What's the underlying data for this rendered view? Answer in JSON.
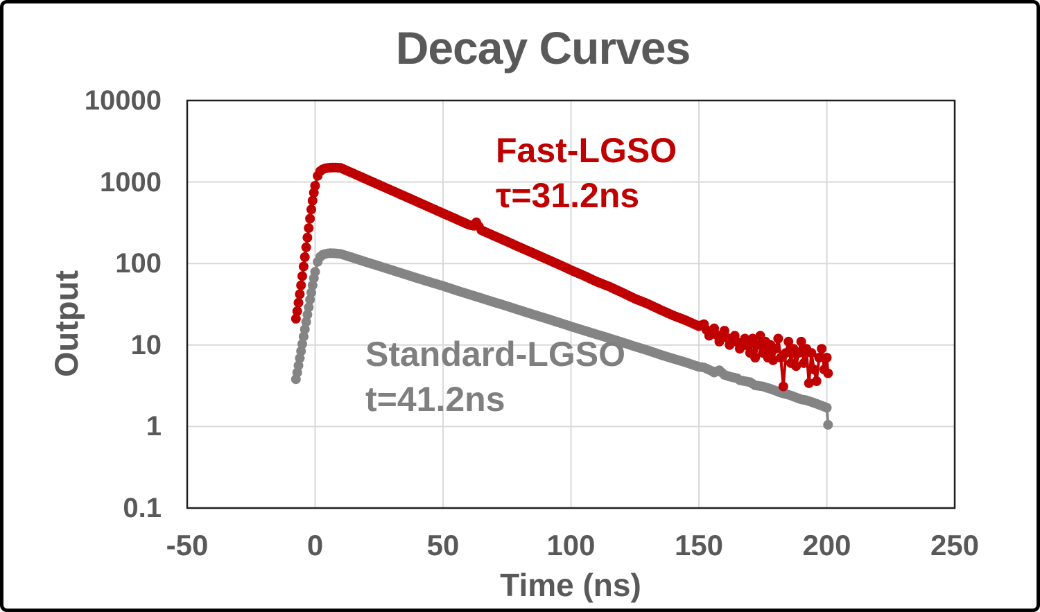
{
  "chart_data": {
    "type": "scatter",
    "title": "Decay Curves",
    "xlabel": "Time (ns)",
    "ylabel": "Output",
    "grid": true,
    "x_axis": {
      "min": -50,
      "max": 250,
      "ticks": [
        -50,
        0,
        50,
        100,
        150,
        200,
        250
      ]
    },
    "y_axis": {
      "scale": "log",
      "min": 0.1,
      "max": 10000,
      "ticks": [
        {
          "label": "10000",
          "value": 10000
        },
        {
          "label": "1000",
          "value": 1000
        },
        {
          "label": "100",
          "value": 100
        },
        {
          "label": "10",
          "value": 10
        },
        {
          "label": "1",
          "value": 1
        },
        {
          "label": "0.1",
          "value": 0.1
        }
      ]
    },
    "colors": {
      "fast": "#C00000",
      "standard": "#848484",
      "text": "#595959",
      "grid": "#D9D9D9",
      "plot_border": "#1F1F1F"
    },
    "annotations": [
      {
        "id": "fast",
        "lines": [
          "Fast-LGSO",
          "τ=31.2ns"
        ],
        "color": "#C00000"
      },
      {
        "id": "standard",
        "lines": [
          "Standard-LGSO",
          "t=41.2ns"
        ],
        "color": "#7F7F7F"
      }
    ],
    "series": [
      {
        "name": "Fast-LGSO",
        "tau_ns": 31.2,
        "color": "#C00000",
        "points": [
          [
            -7.5,
            21
          ],
          [
            -7,
            26
          ],
          [
            -6.5,
            33
          ],
          [
            -6,
            42
          ],
          [
            -5.5,
            54
          ],
          [
            -5,
            70
          ],
          [
            -4.5,
            92
          ],
          [
            -4,
            120
          ],
          [
            -3.5,
            158
          ],
          [
            -3,
            208
          ],
          [
            -2.5,
            272
          ],
          [
            -2,
            355
          ],
          [
            -1.5,
            460
          ],
          [
            -1,
            590
          ],
          [
            -0.5,
            740
          ],
          [
            0,
            900
          ],
          [
            1,
            1190
          ],
          [
            2,
            1360
          ],
          [
            3,
            1430
          ],
          [
            4,
            1470
          ],
          [
            5,
            1490
          ],
          [
            6,
            1500
          ],
          [
            8,
            1505
          ],
          [
            10,
            1490
          ],
          [
            15,
            1269
          ],
          [
            20,
            1081
          ],
          [
            25,
            921
          ],
          [
            30,
            785
          ],
          [
            35,
            669
          ],
          [
            40,
            570
          ],
          [
            45,
            485
          ],
          [
            50,
            413
          ],
          [
            55,
            352
          ],
          [
            60,
            300
          ],
          [
            62,
            290
          ],
          [
            63,
            320
          ],
          [
            64,
            285
          ],
          [
            65,
            256
          ],
          [
            70,
            218
          ],
          [
            75,
            186
          ],
          [
            80,
            158
          ],
          [
            85,
            135
          ],
          [
            90,
            115
          ],
          [
            95,
            98
          ],
          [
            100,
            83
          ],
          [
            105,
            71
          ],
          [
            110,
            60
          ],
          [
            115,
            52
          ],
          [
            120,
            44
          ],
          [
            125,
            37
          ],
          [
            130,
            32
          ],
          [
            135,
            27
          ],
          [
            140,
            23
          ],
          [
            145,
            20
          ],
          [
            150,
            17
          ],
          [
            152,
            18
          ],
          [
            154,
            13
          ],
          [
            156,
            16
          ],
          [
            158,
            11
          ],
          [
            160,
            15
          ],
          [
            162,
            10
          ],
          [
            164,
            13
          ],
          [
            166,
            9
          ],
          [
            168,
            12
          ],
          [
            170,
            8
          ],
          [
            171,
            12
          ],
          [
            172,
            7
          ],
          [
            173,
            10
          ],
          [
            174,
            13
          ],
          [
            175,
            8
          ],
          [
            176,
            11
          ],
          [
            177,
            7
          ],
          [
            178,
            10
          ],
          [
            179,
            6.5
          ],
          [
            180,
            9
          ],
          [
            181,
            12
          ],
          [
            182,
            7
          ],
          [
            183,
            3.1
          ],
          [
            184,
            8
          ],
          [
            185,
            11
          ],
          [
            186,
            6
          ],
          [
            187,
            9
          ],
          [
            188,
            5.5
          ],
          [
            189,
            8
          ],
          [
            190,
            11
          ],
          [
            191,
            6
          ],
          [
            192,
            9
          ],
          [
            193,
            3.4
          ],
          [
            194,
            8
          ],
          [
            195,
            5
          ],
          [
            196,
            3.6
          ],
          [
            197,
            7
          ],
          [
            198,
            9
          ],
          [
            199,
            5
          ],
          [
            200,
            7
          ],
          [
            200.5,
            4.5
          ]
        ]
      },
      {
        "name": "Standard-LGSO",
        "tau_ns": 41.2,
        "color": "#848484",
        "points": [
          [
            -7.5,
            3.8
          ],
          [
            -7,
            4.6
          ],
          [
            -6.5,
            5.6
          ],
          [
            -6,
            6.9
          ],
          [
            -5.5,
            8.4
          ],
          [
            -5,
            10.3
          ],
          [
            -4.5,
            12.7
          ],
          [
            -4,
            15.6
          ],
          [
            -3.5,
            19.2
          ],
          [
            -3,
            23.6
          ],
          [
            -2.5,
            29
          ],
          [
            -2,
            36
          ],
          [
            -1.5,
            44
          ],
          [
            -1,
            54
          ],
          [
            -0.5,
            66
          ],
          [
            0,
            79
          ],
          [
            1,
            105
          ],
          [
            2,
            121
          ],
          [
            3,
            128
          ],
          [
            4,
            131
          ],
          [
            5,
            133
          ],
          [
            6,
            134
          ],
          [
            8,
            133
          ],
          [
            10,
            131
          ],
          [
            15,
            117
          ],
          [
            20,
            104
          ],
          [
            25,
            93
          ],
          [
            30,
            83
          ],
          [
            35,
            74
          ],
          [
            40,
            66
          ],
          [
            45,
            59
          ],
          [
            50,
            53
          ],
          [
            55,
            47
          ],
          [
            60,
            42
          ],
          [
            65,
            37.5
          ],
          [
            70,
            33.5
          ],
          [
            75,
            30
          ],
          [
            80,
            26.7
          ],
          [
            85,
            23.8
          ],
          [
            90,
            21.3
          ],
          [
            95,
            19
          ],
          [
            100,
            16.9
          ],
          [
            105,
            15.1
          ],
          [
            110,
            13.5
          ],
          [
            115,
            12.1
          ],
          [
            120,
            10.8
          ],
          [
            125,
            9.6
          ],
          [
            130,
            8.6
          ],
          [
            135,
            7.6
          ],
          [
            140,
            6.8
          ],
          [
            145,
            6.1
          ],
          [
            150,
            5.4
          ],
          [
            152,
            5.3
          ],
          [
            155,
            4.8
          ],
          [
            156,
            4.6
          ],
          [
            158,
            4.9
          ],
          [
            160,
            4.3
          ],
          [
            162,
            4.1
          ],
          [
            165,
            3.9
          ],
          [
            166,
            3.7
          ],
          [
            170,
            3.5
          ],
          [
            172,
            3.2
          ],
          [
            175,
            3.1
          ],
          [
            178,
            2.9
          ],
          [
            180,
            2.75
          ],
          [
            182,
            2.6
          ],
          [
            185,
            2.45
          ],
          [
            186,
            2.4
          ],
          [
            190,
            2.15
          ],
          [
            192,
            2.1
          ],
          [
            195,
            1.95
          ],
          [
            196,
            1.9
          ],
          [
            198,
            1.8
          ],
          [
            199,
            1.75
          ],
          [
            200,
            1.7
          ],
          [
            200.5,
            1.05
          ]
        ]
      }
    ]
  }
}
